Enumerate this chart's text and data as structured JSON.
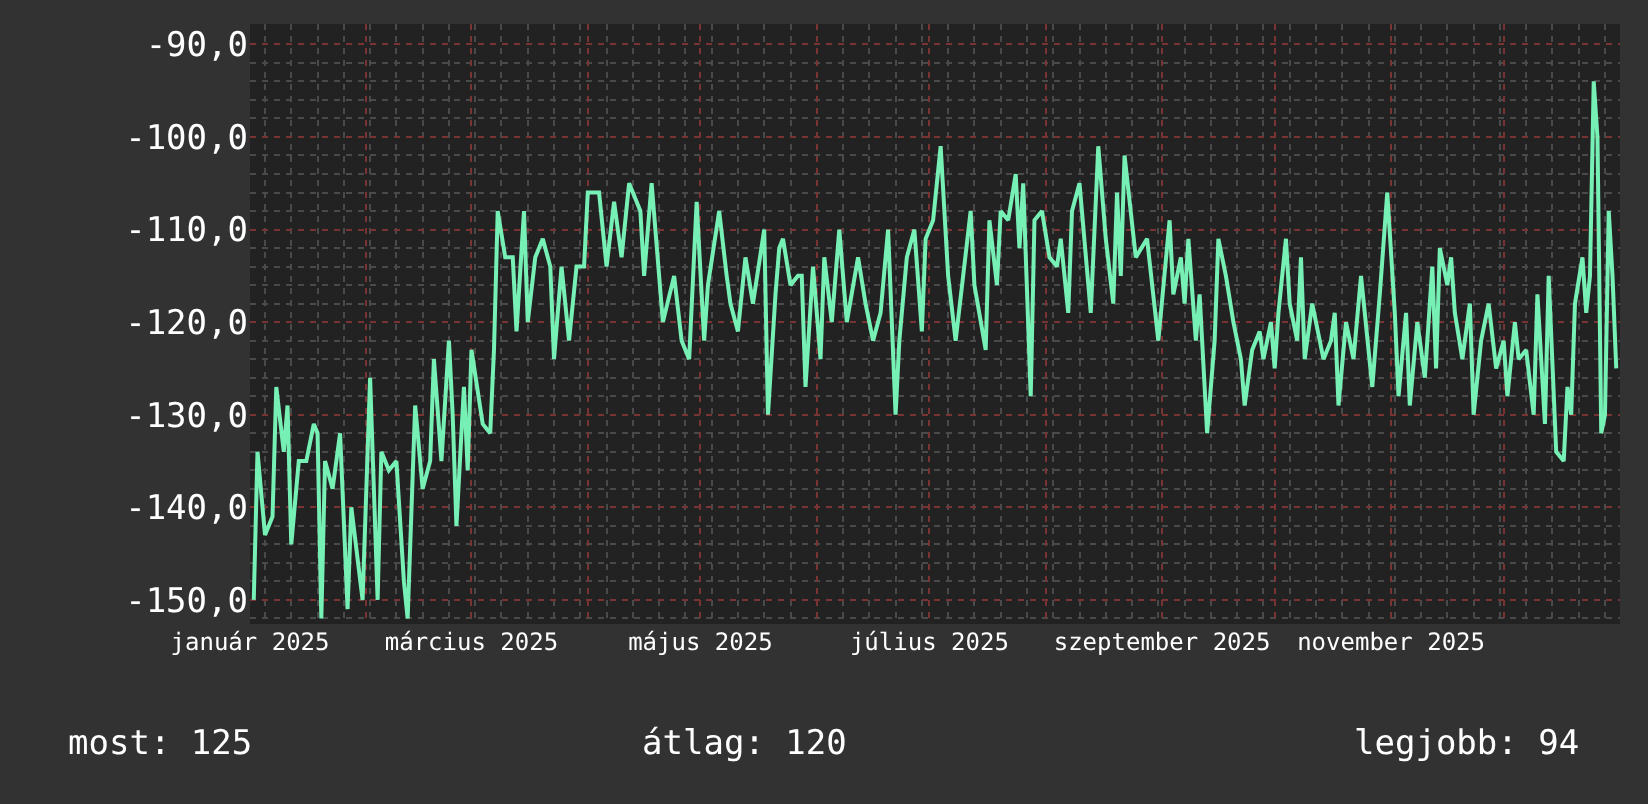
{
  "chart_data": {
    "type": "line",
    "annotations": [
      "most: 125",
      "átlag: 120",
      "legjobb: 94"
    ],
    "x": [
      "2025-01-02",
      "2025-01-03",
      "2025-01-05",
      "2025-01-07",
      "2025-01-08",
      "2025-01-10",
      "2025-01-11",
      "2025-01-12",
      "2025-01-14",
      "2025-01-16",
      "2025-01-18",
      "2025-01-19",
      "2025-01-20",
      "2025-01-21",
      "2025-01-23",
      "2025-01-25",
      "2025-01-27",
      "2025-01-28",
      "2025-01-31",
      "2025-02-02",
      "2025-02-04",
      "2025-02-05",
      "2025-02-07",
      "2025-02-09",
      "2025-02-11",
      "2025-02-12",
      "2025-02-14",
      "2025-02-16",
      "2025-02-18",
      "2025-02-19",
      "2025-02-21",
      "2025-02-23",
      "2025-02-24",
      "2025-02-25",
      "2025-02-27",
      "2025-02-28",
      "2025-03-01",
      "2025-03-04",
      "2025-03-06",
      "2025-03-07",
      "2025-03-08",
      "2025-03-10",
      "2025-03-12",
      "2025-03-13",
      "2025-03-15",
      "2025-03-16",
      "2025-03-18",
      "2025-03-20",
      "2025-03-22",
      "2025-03-23",
      "2025-03-25",
      "2025-03-27",
      "2025-03-29",
      "2025-03-31",
      "2025-04-01",
      "2025-04-04",
      "2025-04-06",
      "2025-04-08",
      "2025-04-10",
      "2025-04-12",
      "2025-04-15",
      "2025-04-16",
      "2025-04-18",
      "2025-04-21",
      "2025-04-24",
      "2025-04-26",
      "2025-04-28",
      "2025-04-30",
      "2025-05-02",
      "2025-05-03",
      "2025-05-06",
      "2025-05-08",
      "2025-05-09",
      "2025-05-11",
      "2025-05-13",
      "2025-05-15",
      "2025-05-18",
      "2025-05-19",
      "2025-05-21",
      "2025-05-22",
      "2025-05-23",
      "2025-05-25",
      "2025-05-27",
      "2025-05-28",
      "2025-05-29",
      "2025-05-31",
      "2025-06-02",
      "2025-06-03",
      "2025-06-05",
      "2025-06-07",
      "2025-06-09",
      "2025-06-12",
      "2025-06-14",
      "2025-06-16",
      "2025-06-18",
      "2025-06-20",
      "2025-06-22",
      "2025-06-23",
      "2025-06-25",
      "2025-06-27",
      "2025-06-29",
      "2025-06-30",
      "2025-07-02",
      "2025-07-04",
      "2025-07-06",
      "2025-07-08",
      "2025-07-12",
      "2025-07-13",
      "2025-07-16",
      "2025-07-17",
      "2025-07-19",
      "2025-07-20",
      "2025-07-22",
      "2025-07-24",
      "2025-07-25",
      "2025-07-26",
      "2025-07-28",
      "2025-07-29",
      "2025-07-31",
      "2025-08-02",
      "2025-08-04",
      "2025-08-05",
      "2025-08-07",
      "2025-08-08",
      "2025-08-10",
      "2025-08-13",
      "2025-08-15",
      "2025-08-17",
      "2025-08-19",
      "2025-08-20",
      "2025-08-21",
      "2025-08-22",
      "2025-08-25",
      "2025-08-28",
      "2025-08-31",
      "2025-09-03",
      "2025-09-04",
      "2025-09-06",
      "2025-09-07",
      "2025-09-08",
      "2025-09-10",
      "2025-09-11",
      "2025-09-13",
      "2025-09-15",
      "2025-09-16",
      "2025-09-18",
      "2025-09-20",
      "2025-09-22",
      "2025-09-23",
      "2025-09-25",
      "2025-09-27",
      "2025-09-28",
      "2025-09-30",
      "2025-10-01",
      "2025-10-02",
      "2025-10-04",
      "2025-10-05",
      "2025-10-07",
      "2025-10-08",
      "2025-10-09",
      "2025-10-11",
      "2025-10-12",
      "2025-10-14",
      "2025-10-16",
      "2025-10-17",
      "2025-10-18",
      "2025-10-20",
      "2025-10-22",
      "2025-10-24",
      "2025-10-27",
      "2025-10-29",
      "2025-10-31",
      "2025-11-02",
      "2025-11-03",
      "2025-11-05",
      "2025-11-06",
      "2025-11-08",
      "2025-11-10",
      "2025-11-12",
      "2025-11-13",
      "2025-11-14",
      "2025-11-16",
      "2025-11-17",
      "2025-11-18",
      "2025-11-20",
      "2025-11-22",
      "2025-11-23",
      "2025-11-25",
      "2025-11-27",
      "2025-11-29",
      "2025-12-01",
      "2025-12-02",
      "2025-12-04",
      "2025-12-05",
      "2025-12-07",
      "2025-12-09",
      "2025-12-10",
      "2025-12-12",
      "2025-12-13",
      "2025-12-15",
      "2025-12-17",
      "2025-12-18",
      "2025-12-19",
      "2025-12-20",
      "2025-12-22",
      "2025-12-23",
      "2025-12-24",
      "2025-12-25",
      "2025-12-26",
      "2025-12-27",
      "2025-12-28",
      "2025-12-29",
      "2025-12-30",
      "2025-12-31"
    ],
    "series": [
      {
        "color": "#77f0b5",
        "values": [
          -150,
          -134,
          -143,
          -141,
          -127,
          -134,
          -129,
          -144,
          -135,
          -135,
          -131,
          -132,
          -152,
          -135,
          -138,
          -132,
          -151,
          -140,
          -150,
          -126,
          -150,
          -134,
          -136,
          -135,
          -148,
          -152,
          -129,
          -138,
          -135,
          -124,
          -135,
          -122,
          -130,
          -142,
          -127,
          -136,
          -123,
          -131,
          -132,
          -123,
          -108,
          -113,
          -113,
          -121,
          -108,
          -120,
          -113,
          -111,
          -114,
          -124,
          -114,
          -122,
          -114,
          -114,
          -106,
          -106,
          -114,
          -107,
          -113,
          -105,
          -108,
          -115,
          -105,
          -120,
          -115,
          -122,
          -124,
          -107,
          -122,
          -116,
          -108,
          -115,
          -118,
          -121,
          -113,
          -118,
          -110,
          -130,
          -117,
          -112,
          -111,
          -116,
          -115,
          -115,
          -127,
          -114,
          -124,
          -113,
          -120,
          -110,
          -120,
          -113,
          -118,
          -122,
          -119,
          -110,
          -130,
          -122,
          -113,
          -110,
          -121,
          -111,
          -109,
          -101,
          -115,
          -122,
          -108,
          -116,
          -123,
          -109,
          -116,
          -108,
          -109,
          -104,
          -112,
          -105,
          -128,
          -109,
          -108,
          -113,
          -114,
          -111,
          -119,
          -108,
          -105,
          -119,
          -101,
          -111,
          -118,
          -106,
          -115,
          -102,
          -113,
          -111,
          -122,
          -109,
          -117,
          -113,
          -118,
          -111,
          -122,
          -117,
          -132,
          -122,
          -111,
          -115,
          -120,
          -124,
          -129,
          -123,
          -121,
          -124,
          -120,
          -125,
          -119,
          -111,
          -118,
          -122,
          -113,
          -124,
          -118,
          -120,
          -124,
          -122,
          -119,
          -129,
          -120,
          -124,
          -115,
          -127,
          -117,
          -106,
          -119,
          -128,
          -119,
          -129,
          -120,
          -126,
          -114,
          -125,
          -112,
          -116,
          -113,
          -119,
          -124,
          -118,
          -130,
          -122,
          -118,
          -125,
          -122,
          -128,
          -120,
          -124,
          -123,
          -130,
          -117,
          -131,
          -115,
          -134,
          -135,
          -127,
          -130,
          -118,
          -113,
          -119,
          -115,
          -94,
          -100,
          -132,
          -130,
          -108,
          -115,
          -125
        ]
      }
    ],
    "xlim": [
      "2025-01-01",
      "2026-01-01"
    ],
    "xticks": [
      {
        "value": "2025-01-01",
        "label": "január 2025"
      },
      {
        "value": "2025-02-01",
        "label": null
      },
      {
        "value": "2025-03-01",
        "label": "március 2025"
      },
      {
        "value": "2025-04-01",
        "label": null
      },
      {
        "value": "2025-05-01",
        "label": "május 2025"
      },
      {
        "value": "2025-06-01",
        "label": null
      },
      {
        "value": "2025-07-01",
        "label": "július 2025"
      },
      {
        "value": "2025-08-01",
        "label": null
      },
      {
        "value": "2025-09-01",
        "label": "szeptember 2025"
      },
      {
        "value": "2025-10-01",
        "label": null
      },
      {
        "value": "2025-11-01",
        "label": "november 2025"
      },
      {
        "value": "2025-12-01",
        "label": null
      }
    ],
    "ylim": [
      -152.6,
      -87.8
    ],
    "yticks": [
      {
        "value": -150,
        "label": "-150,0"
      },
      {
        "value": -140,
        "label": "-140,0"
      },
      {
        "value": -130,
        "label": "-130,0"
      },
      {
        "value": -120,
        "label": "-120,0"
      },
      {
        "value": -110,
        "label": "-110,0"
      },
      {
        "value": -100,
        "label": "-100,0"
      },
      {
        "value": -90,
        "label": "-90,0"
      }
    ],
    "grid": true
  }
}
